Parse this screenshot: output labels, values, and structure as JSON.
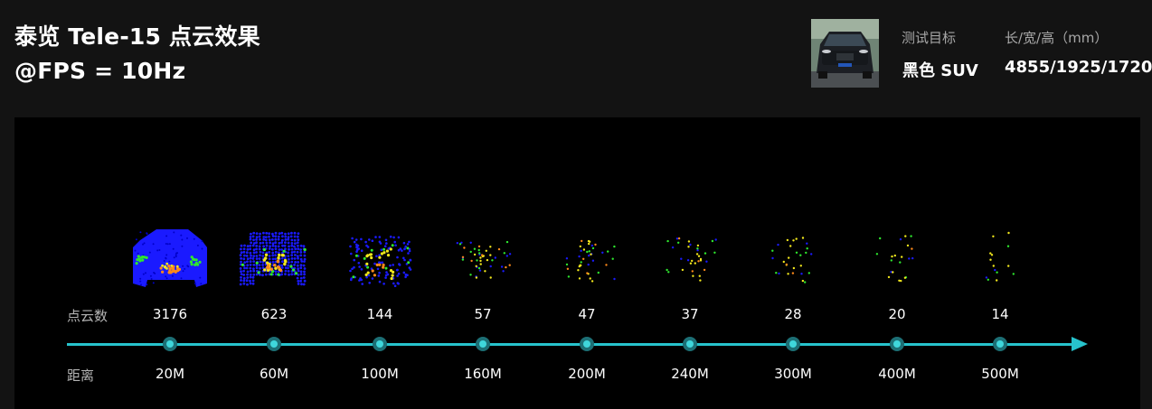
{
  "header": {
    "title_line1": "泰览 Tele-15 点云效果",
    "title_line2": "@FPS = 10Hz"
  },
  "test_info": {
    "target_label": "测试目标",
    "target_value": "黑色 SUV",
    "size_label": "长/宽/高（mm）",
    "size_value": "4855/1925/1720"
  },
  "chart": {
    "count_label": "点云数",
    "distance_label": "距离",
    "axis_color": "#27c3cc",
    "columns": [
      {
        "count": "3176",
        "distance": "20M"
      },
      {
        "count": "623",
        "distance": "60M"
      },
      {
        "count": "144",
        "distance": "100M"
      },
      {
        "count": "57",
        "distance": "160M"
      },
      {
        "count": "47",
        "distance": "200M"
      },
      {
        "count": "37",
        "distance": "240M"
      },
      {
        "count": "28",
        "distance": "300M"
      },
      {
        "count": "20",
        "distance": "400M"
      },
      {
        "count": "14",
        "distance": "500M"
      }
    ]
  },
  "point_colors": {
    "blue": "#1a1aff",
    "green": "#2ee82e",
    "yellow": "#f2e81c",
    "orange": "#ff8a1a"
  }
}
